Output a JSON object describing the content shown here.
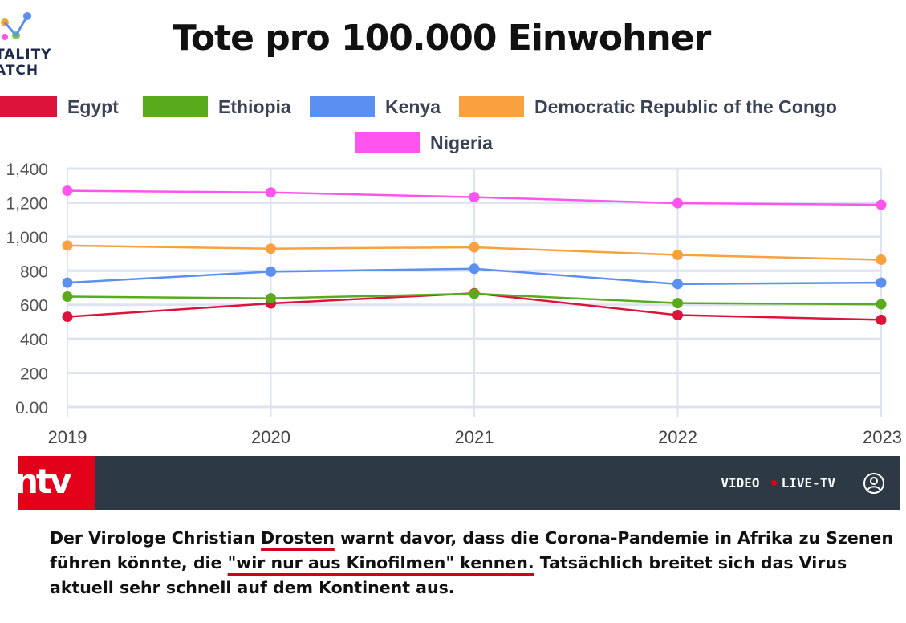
{
  "logo": {
    "line1": "TALITY",
    "line2": "ATCH"
  },
  "chart_data": {
    "type": "line",
    "title": "Tote pro 100.000 Einwohner",
    "x": [
      "2019",
      "2020",
      "2021",
      "2022",
      "2023"
    ],
    "ylim": [
      0,
      1400
    ],
    "yticks": [
      "0.00",
      "200",
      "400",
      "600",
      "800",
      "1,000",
      "1,200",
      "1,400"
    ],
    "ytick_values": [
      0,
      200,
      400,
      600,
      800,
      1000,
      1200,
      1400
    ],
    "grid": true,
    "legend_position": "top-center",
    "series": [
      {
        "name": "Egypt",
        "color": "#dc143c",
        "values": [
          530,
          608,
          668,
          540,
          512
        ]
      },
      {
        "name": "Ethiopia",
        "color": "#5aaa1e",
        "values": [
          648,
          638,
          665,
          610,
          603
        ]
      },
      {
        "name": "Kenya",
        "color": "#5b8ff0",
        "values": [
          730,
          795,
          812,
          722,
          730
        ]
      },
      {
        "name": "Democratic Republic of the Congo",
        "color": "#f9a03f",
        "values": [
          948,
          930,
          938,
          893,
          865
        ]
      },
      {
        "name": "Nigeria",
        "color": "#ff55ee",
        "values": [
          1270,
          1260,
          1232,
          1197,
          1188
        ]
      }
    ]
  },
  "ntv": {
    "logo_text": "ntv",
    "nav": {
      "video": "VIDEO",
      "live": "LIVE-TV"
    },
    "brand_color": "#e2001a",
    "bar_color": "#2d3a45"
  },
  "article": {
    "p1": "Der Virologe Christian ",
    "u1": "Drosten",
    "p2": " warnt davor, dass die Corona-Pandemie in Afrika zu Szenen führen könnte, die ",
    "u2": "\"wir nur aus Kinofilmen\" kennen.",
    "p3": " Tatsächlich breitet sich das Virus aktuell sehr schnell auf dem Kontinent aus."
  }
}
